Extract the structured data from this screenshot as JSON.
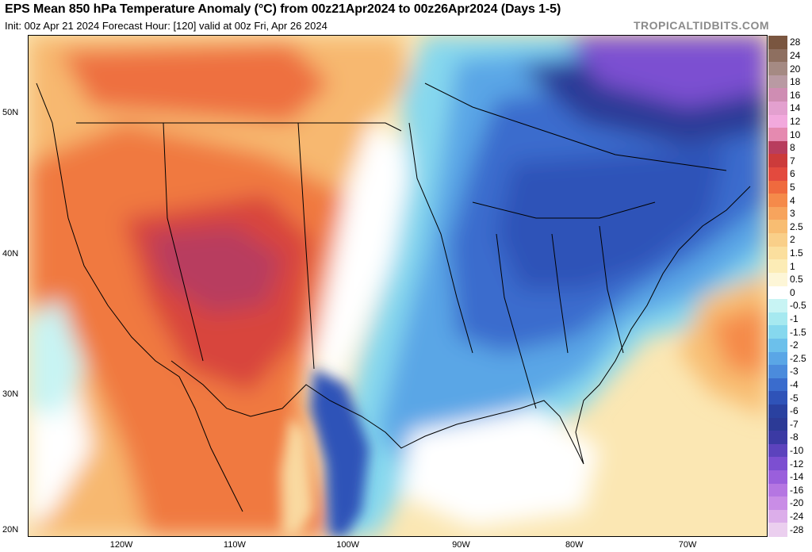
{
  "header": {
    "title": "EPS Mean 850 hPa Temperature Anomaly (°C) from 00z21Apr2024 to 00z26Apr2024 (Days 1-5)",
    "subtitle": "Init: 00z Apr 21 2024   Forecast Hour: [120]   valid at 00z Fri, Apr 26 2024",
    "brand": "TROPICALTIDBITS.COM"
  },
  "axes": {
    "lat_labels": [
      {
        "text": "50N",
        "lat": 50
      },
      {
        "text": "40N",
        "lat": 40
      },
      {
        "text": "30N",
        "lat": 30
      },
      {
        "text": "20N",
        "lat": 20
      }
    ],
    "lon_labels": [
      {
        "text": "120W",
        "lon": -120
      },
      {
        "text": "110W",
        "lon": -110
      },
      {
        "text": "100W",
        "lon": -100
      },
      {
        "text": "90W",
        "lon": -90
      },
      {
        "text": "80W",
        "lon": -80
      },
      {
        "text": "70W",
        "lon": -70
      }
    ]
  },
  "colorbar": {
    "labels": [
      "28",
      "24",
      "20",
      "18",
      "16",
      "14",
      "12",
      "10",
      "8",
      "7",
      "6",
      "5",
      "4",
      "3",
      "2.5",
      "2",
      "1.5",
      "1",
      "0.5",
      "0",
      "-0.5",
      "-1",
      "-1.5",
      "-2",
      "-2.5",
      "-3",
      "-4",
      "-5",
      "-6",
      "-7",
      "-8",
      "-10",
      "-12",
      "-14",
      "-16",
      "-20",
      "-24",
      "-28"
    ],
    "colors": [
      "#7a5640",
      "#8e6f60",
      "#a58a83",
      "#b99aa3",
      "#cf8db3",
      "#e3a0cf",
      "#f2a9dd",
      "#e58ab0",
      "#b83d5e",
      "#cc3b3b",
      "#e34a3e",
      "#ef6a3e",
      "#f58a4a",
      "#f7a45d",
      "#f8bd72",
      "#f9cf89",
      "#fbdf9e",
      "#fcecb6",
      "#fdf6d7",
      "#ffffff",
      "#c8f4f4",
      "#a6e9f0",
      "#86d8ee",
      "#6cc0eb",
      "#5aa6e6",
      "#4b8bdc",
      "#3a6ccd",
      "#2f53b8",
      "#2a41a0",
      "#2c3a96",
      "#3b3aa4",
      "#5c43bd",
      "#7c4fd1",
      "#9a5fdc",
      "#b576e2",
      "#c98de6",
      "#dcaeea",
      "#ebcfef"
    ]
  },
  "regions": [
    {
      "name": "west-warm-core",
      "color": "#c9484e"
    },
    {
      "name": "east-cold-core",
      "color": "#2a41a0"
    },
    {
      "name": "canada-cold-core",
      "color": "#7c4fd1"
    }
  ]
}
